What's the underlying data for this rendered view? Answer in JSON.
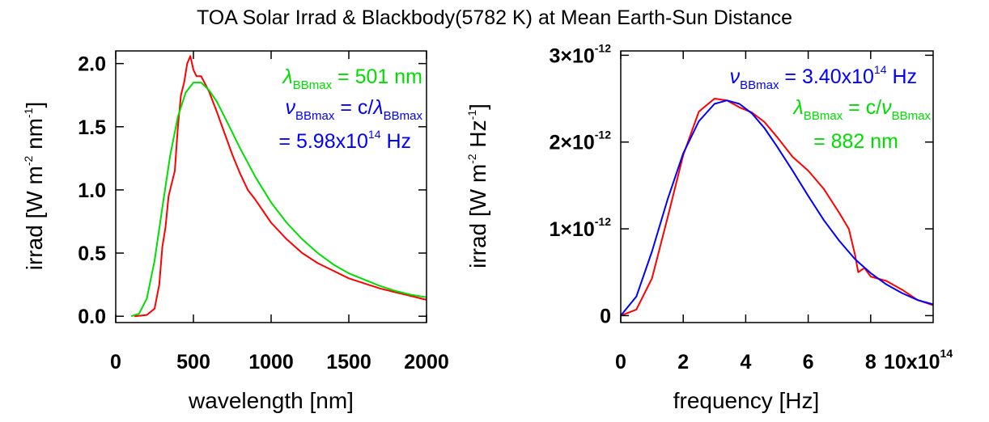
{
  "chart_data": [
    {
      "type": "line",
      "title": "TOA Solar Irrad & Blackbody(5782 K) at Mean Earth-Sun Distance",
      "xlabel": "wavelength [nm]",
      "ylabel": {
        "main": "irrad [W m",
        "exp1": "-2",
        "mid": " nm",
        "exp2": "-1",
        "end": "]"
      },
      "xlim": [
        0,
        2000
      ],
      "ylim": [
        -0.05,
        2.1
      ],
      "x_ticks": [
        0,
        500,
        1000,
        1500,
        2000
      ],
      "x_tick_labels": [
        "0",
        "500",
        "1000",
        "1500",
        "2000"
      ],
      "y_ticks": [
        0.0,
        0.5,
        1.0,
        1.5,
        2.0
      ],
      "y_tick_labels": [
        "0.0",
        "0.5",
        "1.0",
        "1.5",
        "2.0"
      ],
      "grid": false,
      "series": [
        {
          "color": "#ff0000",
          "x": [
            120,
            200,
            250,
            280,
            300,
            320,
            340,
            360,
            380,
            400,
            420,
            440,
            460,
            480,
            500,
            520,
            550,
            600,
            650,
            700,
            750,
            800,
            850,
            900,
            1000,
            1100,
            1200,
            1300,
            1400,
            1500,
            1600,
            1700,
            1800,
            1900,
            2000
          ],
          "y": [
            0.0,
            0.01,
            0.06,
            0.25,
            0.55,
            0.7,
            0.95,
            1.05,
            1.15,
            1.5,
            1.75,
            1.85,
            2.0,
            2.06,
            1.95,
            1.9,
            1.9,
            1.78,
            1.62,
            1.45,
            1.28,
            1.13,
            1.0,
            0.92,
            0.74,
            0.61,
            0.5,
            0.42,
            0.36,
            0.3,
            0.26,
            0.22,
            0.19,
            0.16,
            0.13
          ]
        },
        {
          "color": "#00dd00",
          "x": [
            100,
            150,
            200,
            250,
            300,
            350,
            400,
            450,
            500,
            550,
            600,
            650,
            700,
            800,
            900,
            1000,
            1100,
            1200,
            1300,
            1400,
            1500,
            1600,
            1700,
            1800,
            1900,
            2000
          ],
          "y": [
            0.0,
            0.02,
            0.14,
            0.44,
            0.86,
            1.27,
            1.58,
            1.77,
            1.85,
            1.85,
            1.79,
            1.7,
            1.58,
            1.33,
            1.1,
            0.9,
            0.74,
            0.61,
            0.5,
            0.41,
            0.34,
            0.29,
            0.24,
            0.2,
            0.17,
            0.15
          ]
        }
      ],
      "annotations": [
        {
          "color": "#00dd00",
          "parts": [
            "λ",
            "BBmax",
            " = 501 nm"
          ]
        },
        {
          "color": "#0000ff",
          "parts": [
            "ν",
            "BBmax",
            " = c/",
            "λ",
            "BBmax"
          ]
        },
        {
          "color": "#0000ff",
          "parts": [
            "= 5.98x10",
            "14",
            " Hz"
          ]
        }
      ]
    },
    {
      "type": "line",
      "xlabel": "frequency [Hz]",
      "ylabel": {
        "main": "irrad [W m",
        "exp1": "-2",
        "mid": " Hz",
        "exp2": "-1",
        "end": "]"
      },
      "xlim": [
        0,
        1000000000000000.0
      ],
      "ylim": [
        -8e-14,
        3.05e-12
      ],
      "x_ticks": [
        0,
        200000000000000.0,
        400000000000000.0,
        600000000000000.0,
        800000000000000.0
      ],
      "x_tick_labels": [
        "0",
        "2",
        "4",
        "6",
        "8"
      ],
      "x_multiplier": {
        "base": "10x10",
        "exp": "14"
      },
      "y_ticks": [
        0,
        1e-12,
        2e-12,
        3e-12
      ],
      "y_tick_labels": [
        {
          "base": "0",
          "exp": ""
        },
        {
          "base": "1×10",
          "exp": "-12"
        },
        {
          "base": "2×10",
          "exp": "-12"
        },
        {
          "base": "3×10",
          "exp": "-12"
        }
      ],
      "grid": false,
      "series": [
        {
          "color": "#ff0000",
          "x": [
            0,
            50000000000000.0,
            100000000000000.0,
            150000000000000.0,
            200000000000000.0,
            250000000000000.0,
            300000000000000.0,
            340000000000000.0,
            380000000000000.0,
            420000000000000.0,
            460000000000000.0,
            500000000000000.0,
            550000000000000.0,
            600000000000000.0,
            650000000000000.0,
            700000000000000.0,
            730000000000000.0,
            750000000000000.0,
            760000000000000.0,
            780000000000000.0,
            800000000000000.0,
            850000000000000.0,
            900000000000000.0,
            950000000000000.0,
            1000000000000000.0
          ],
          "y": [
            0,
            7e-14,
            4.3e-13,
            1.13e-12,
            1.85e-12,
            2.35e-12,
            2.5e-12,
            2.48e-12,
            2.4e-12,
            2.34e-12,
            2.23e-12,
            2.06e-12,
            1.83e-12,
            1.67e-12,
            1.46e-12,
            1.18e-12,
            1e-12,
            7e-13,
            5e-13,
            5.5e-13,
            4.5e-13,
            4e-13,
            3e-13,
            1.8e-13,
            1.2e-13
          ]
        },
        {
          "color": "#0000ff",
          "x": [
            0,
            50000000000000.0,
            100000000000000.0,
            150000000000000.0,
            200000000000000.0,
            250000000000000.0,
            300000000000000.0,
            340000000000000.0,
            380000000000000.0,
            420000000000000.0,
            460000000000000.0,
            500000000000000.0,
            550000000000000.0,
            600000000000000.0,
            650000000000000.0,
            700000000000000.0,
            750000000000000.0,
            800000000000000.0,
            850000000000000.0,
            900000000000000.0,
            950000000000000.0,
            1000000000000000.0
          ],
          "y": [
            0,
            2.2e-13,
            7.4e-13,
            1.34e-12,
            1.87e-12,
            2.24e-12,
            2.44e-12,
            2.48e-12,
            2.44e-12,
            2.33e-12,
            2.16e-12,
            1.95e-12,
            1.67e-12,
            1.38e-12,
            1.1e-12,
            8.6e-13,
            6.5e-13,
            4.9e-13,
            3.6e-13,
            2.6e-13,
            1.8e-13,
            1.3e-13
          ]
        }
      ],
      "annotations": [
        {
          "color": "#0000ff",
          "parts": [
            "ν",
            "BBmax",
            " = 3.40x10",
            "14",
            " Hz"
          ]
        },
        {
          "color": "#00dd00",
          "parts": [
            "λ",
            "BBmax",
            " = c/",
            "ν",
            "BBmax"
          ]
        },
        {
          "color": "#00dd00",
          "parts": [
            "= 882 nm"
          ]
        }
      ]
    }
  ]
}
